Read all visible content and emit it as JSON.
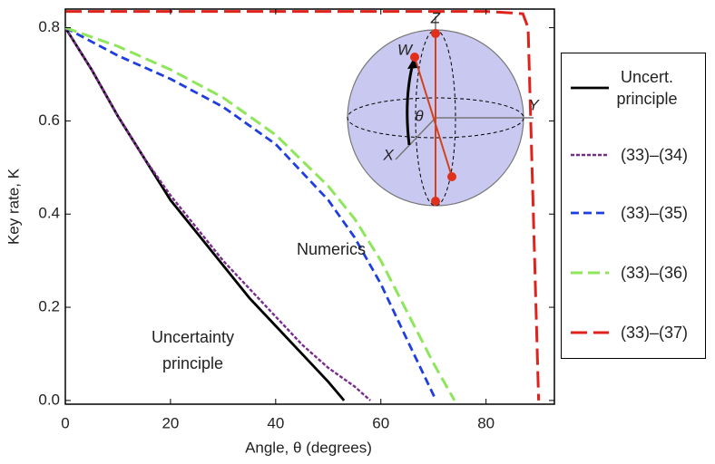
{
  "chart_data": {
    "type": "line",
    "x_label": "Angle, θ (degrees)",
    "y_label": "Key rate, K",
    "xlim": [
      0,
      93
    ],
    "xticks": [
      0,
      20,
      40,
      60,
      80
    ],
    "ylim": [
      -0.008,
      0.84
    ],
    "yticks": [
      {
        "value": 0,
        "label": "0.0"
      },
      0.2,
      0.4,
      0.6,
      0.8
    ],
    "series": [
      {
        "name": "Uncert. principle",
        "color": "#000000",
        "dash": "none",
        "width": 2.8,
        "x": [
          0,
          5,
          10,
          15,
          20,
          25,
          30,
          35,
          40,
          45,
          50,
          53
        ],
        "values": [
          0.8,
          0.71,
          0.61,
          0.52,
          0.43,
          0.36,
          0.29,
          0.22,
          0.16,
          0.1,
          0.04,
          0
        ]
      },
      {
        "name": "(33)–(34)",
        "color": "#7a2a8e",
        "dash": "4 2",
        "width": 2.4,
        "x": [
          0,
          5,
          10,
          15,
          20,
          25,
          30,
          35,
          40,
          45,
          50,
          55,
          58
        ],
        "values": [
          0.8,
          0.71,
          0.61,
          0.52,
          0.44,
          0.37,
          0.3,
          0.24,
          0.18,
          0.12,
          0.07,
          0.03,
          0
        ]
      },
      {
        "name": "(33)–(35)",
        "color": "#1f3ee0",
        "dash": "9 5",
        "width": 2.8,
        "x": [
          0,
          10,
          20,
          30,
          40,
          50,
          55,
          60,
          65,
          70.5
        ],
        "values": [
          0.8,
          0.74,
          0.69,
          0.63,
          0.55,
          0.43,
          0.35,
          0.25,
          0.13,
          0
        ]
      },
      {
        "name": "(33)–(36)",
        "color": "#8ee65a",
        "dash": "13 6",
        "width": 3,
        "x": [
          0,
          10,
          20,
          30,
          40,
          50,
          55,
          60,
          65,
          70,
          74
        ],
        "values": [
          0.8,
          0.76,
          0.71,
          0.65,
          0.57,
          0.46,
          0.39,
          0.3,
          0.19,
          0.08,
          0
        ]
      },
      {
        "name": "(33)–(37)",
        "color": "#e0221c",
        "dash": "18 7",
        "width": 3,
        "x": [
          0,
          40,
          80,
          87,
          88,
          89,
          90
        ],
        "values": [
          0.835,
          0.835,
          0.835,
          0.83,
          0.8,
          0.4,
          0
        ]
      }
    ],
    "annotations": [
      "Numerics",
      "Uncertainty principle"
    ],
    "inset_labels": [
      "Z",
      "W",
      "Y",
      "X",
      "θ"
    ]
  }
}
